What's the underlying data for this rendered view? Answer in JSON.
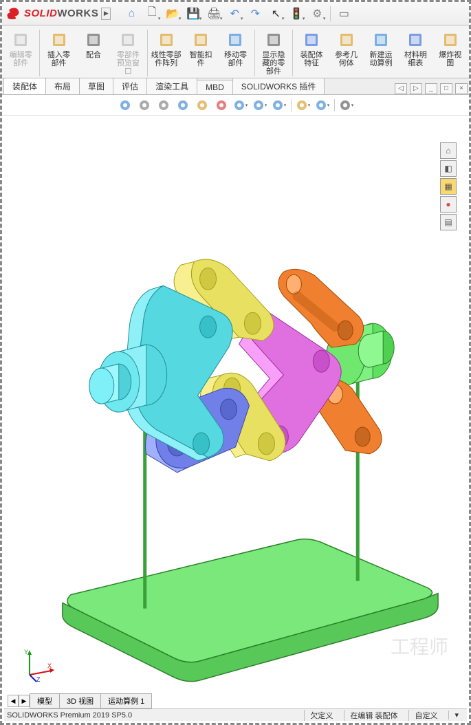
{
  "brand": {
    "bold": "SOLID",
    "rest": "WORKS"
  },
  "titlebar_icons": [
    {
      "name": "home",
      "glyph": "⌂",
      "color": "#4a90d9"
    },
    {
      "name": "new",
      "glyph": "🗋",
      "color": "#666",
      "dd": true
    },
    {
      "name": "open",
      "glyph": "📂",
      "color": "#d9a43a",
      "dd": true
    },
    {
      "name": "save",
      "glyph": "💾",
      "color": "#4a77d9",
      "dd": true
    },
    {
      "name": "print",
      "glyph": "🖨",
      "color": "#555",
      "dd": true
    },
    {
      "name": "undo",
      "glyph": "↶",
      "color": "#4a90d9",
      "dd": true
    },
    {
      "name": "redo",
      "glyph": "↷",
      "color": "#4a90d9",
      "dd": false
    },
    {
      "name": "select",
      "glyph": "↖",
      "color": "#333",
      "dd": true
    },
    {
      "name": "rebuild",
      "glyph": "🚦",
      "color": "#d94a4a",
      "dd": true
    },
    {
      "name": "options",
      "glyph": "⚙",
      "color": "#888",
      "dd": true
    },
    {
      "name": "sep"
    },
    {
      "name": "window",
      "glyph": "▭",
      "color": "#666"
    }
  ],
  "ribbon": [
    {
      "name": "edit-part",
      "label": "编辑零\n部件",
      "disabled": true,
      "icon": "cube-edit",
      "color": "#bbb"
    },
    {
      "name": "insert-part",
      "label": "插入零\n部件",
      "icon": "cube-insert",
      "color": "#d9a43a"
    },
    {
      "name": "mate",
      "label": "配合",
      "icon": "clip",
      "color": "#666"
    },
    {
      "name": "preview",
      "label": "零部件\n预览窗\n口",
      "disabled": true,
      "icon": "preview",
      "color": "#bbb"
    },
    {
      "name": "linear-pattern",
      "label": "线性零部\n件阵列",
      "icon": "pattern",
      "color": "#d9a43a"
    },
    {
      "name": "smart-fasteners",
      "label": "智能扣\n件",
      "icon": "fastener",
      "color": "#d9a43a"
    },
    {
      "name": "move-part",
      "label": "移动零\n部件",
      "icon": "move",
      "color": "#4a90d9"
    },
    {
      "name": "show-hidden",
      "label": "显示隐\n藏的零\n部件",
      "icon": "eye",
      "color": "#666"
    },
    {
      "name": "assembly-feature",
      "label": "装配体\n特征",
      "icon": "feature",
      "color": "#4a77d9"
    },
    {
      "name": "ref-geom",
      "label": "参考几\n何体",
      "icon": "refgeom",
      "color": "#d9a43a"
    },
    {
      "name": "new-motion",
      "label": "新建运\n动算例",
      "icon": "motion",
      "color": "#4a90d9"
    },
    {
      "name": "bom",
      "label": "材料明\n细表",
      "icon": "table",
      "color": "#4a77d9"
    },
    {
      "name": "exploded",
      "label": "爆炸视\n图",
      "icon": "explode",
      "color": "#d9a43a"
    }
  ],
  "tabs": [
    {
      "name": "assembly",
      "label": "装配体",
      "active": true
    },
    {
      "name": "layout",
      "label": "布局"
    },
    {
      "name": "sketch",
      "label": "草图"
    },
    {
      "name": "evaluate",
      "label": "评估"
    },
    {
      "name": "render",
      "label": "渲染工具"
    },
    {
      "name": "mbd",
      "label": "MBD"
    },
    {
      "name": "plugins",
      "label": "SOLIDWORKS 插件"
    }
  ],
  "view_toolbar": [
    {
      "name": "triad",
      "color": "#4a90d9"
    },
    {
      "name": "zoom-fit",
      "color": "#888"
    },
    {
      "name": "zoom-area",
      "color": "#888"
    },
    {
      "name": "prev-view",
      "color": "#4a90d9"
    },
    {
      "name": "section",
      "color": "#d9a43a"
    },
    {
      "name": "dynamic",
      "color": "#d94a4a"
    },
    {
      "name": "view-orient",
      "color": "#4a90d9",
      "dd": true
    },
    {
      "name": "display-style",
      "color": "#4a90d9",
      "dd": true
    },
    {
      "name": "hide-show",
      "color": "#4a90d9",
      "dd": true
    },
    {
      "name": "sep"
    },
    {
      "name": "edit-appearance",
      "color": "#d9a43a",
      "dd": true
    },
    {
      "name": "apply-scene",
      "color": "#4a90d9",
      "dd": true
    },
    {
      "name": "sep"
    },
    {
      "name": "view-settings",
      "color": "#666",
      "dd": true
    }
  ],
  "side_panel": [
    {
      "name": "home",
      "glyph": "⌂"
    },
    {
      "name": "part",
      "glyph": "◧"
    },
    {
      "name": "assembly",
      "glyph": "▦",
      "bg": "#f9d870"
    },
    {
      "name": "appearance",
      "glyph": "●",
      "color": "#d94a4a"
    },
    {
      "name": "custom",
      "glyph": "▤"
    }
  ],
  "bottom_tabs": [
    {
      "name": "model",
      "label": "模型"
    },
    {
      "name": "3dview",
      "label": "3D 视图"
    },
    {
      "name": "motion1",
      "label": "运动算例 1"
    }
  ],
  "status": {
    "version": "SOLIDWORKS Premium 2019 SP5.0",
    "underdefined": "欠定义",
    "editing": "在编辑 装配体",
    "custom": "自定义"
  },
  "watermark": "工程师",
  "model": {
    "base_color": "#7ae87a",
    "rod_color": "#3aa03a",
    "parts": [
      {
        "name": "left-hub",
        "color": "#55d8e0"
      },
      {
        "name": "right-hub",
        "color": "#60e060"
      },
      {
        "name": "link-yellow",
        "color": "#e8e060"
      },
      {
        "name": "link-orange",
        "color": "#f08030"
      },
      {
        "name": "link-magenta",
        "color": "#e070e0"
      },
      {
        "name": "link-blue",
        "color": "#7080e8"
      },
      {
        "name": "link-cyan",
        "color": "#50d0d8"
      }
    ]
  }
}
